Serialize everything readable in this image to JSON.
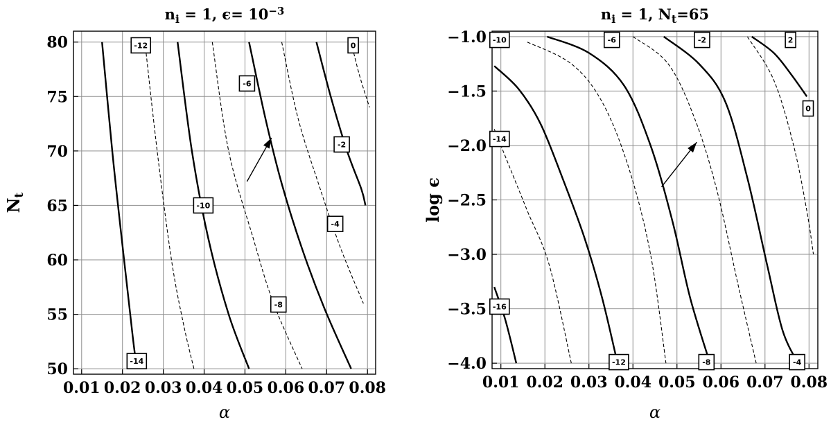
{
  "chart_data": [
    {
      "type": "line",
      "subtype": "contour",
      "title": "n_i = 1, ε = 10^-3",
      "title_parts": {
        "pre": "n",
        "sub": "i",
        "mid": " = 1, ϵ= 10",
        "sup": "−3"
      },
      "xlabel": "α",
      "ylabel": "N_t",
      "ylabel_parts": {
        "base": "N",
        "sub": "t"
      },
      "xlim": [
        0.008,
        0.082
      ],
      "ylim": [
        49.5,
        81
      ],
      "xticks": [
        0.01,
        0.02,
        0.03,
        0.04,
        0.05,
        0.06,
        0.07,
        0.08
      ],
      "xtick_labels": [
        "0.01",
        "0.02",
        "0.03",
        "0.04",
        "0.05",
        "0.06",
        "0.07",
        "0.08"
      ],
      "yticks": [
        50,
        55,
        60,
        65,
        70,
        75,
        80
      ],
      "ytick_labels": [
        "50",
        "55",
        "60",
        "65",
        "70",
        "75",
        "80"
      ],
      "grid": true,
      "series": [
        {
          "name": "-14",
          "style": "solid",
          "points": [
            [
              0.015,
              80
            ],
            [
              0.0175,
              70
            ],
            [
              0.0195,
              63
            ],
            [
              0.021,
              58
            ],
            [
              0.0225,
              53
            ],
            [
              0.0235,
              50
            ]
          ]
        },
        {
          "name": "-12",
          "style": "dashed",
          "points": [
            [
              0.0255,
              80
            ],
            [
              0.0285,
              70
            ],
            [
              0.032,
              60
            ],
            [
              0.035,
              54
            ],
            [
              0.0375,
              50
            ]
          ]
        },
        {
          "name": "-10",
          "style": "solid",
          "points": [
            [
              0.0335,
              80
            ],
            [
              0.037,
              70
            ],
            [
              0.041,
              62
            ],
            [
              0.046,
              55
            ],
            [
              0.051,
              50
            ]
          ]
        },
        {
          "name": "-8",
          "style": "dashed",
          "points": [
            [
              0.042,
              80
            ],
            [
              0.046,
              70
            ],
            [
              0.052,
              62
            ],
            [
              0.057,
              56
            ],
            [
              0.064,
              50
            ]
          ]
        },
        {
          "name": "-6",
          "style": "solid",
          "points": [
            [
              0.051,
              80
            ],
            [
              0.055,
              73
            ],
            [
              0.059,
              67
            ],
            [
              0.064,
              61
            ],
            [
              0.0695,
              55.5
            ],
            [
              0.076,
              50
            ]
          ]
        },
        {
          "name": "-4",
          "style": "dashed",
          "points": [
            [
              0.059,
              80
            ],
            [
              0.063,
              73
            ],
            [
              0.068,
              67
            ],
            [
              0.0735,
              61
            ],
            [
              0.079,
              56
            ]
          ]
        },
        {
          "name": "-2",
          "style": "solid",
          "points": [
            [
              0.0675,
              80
            ],
            [
              0.071,
              75
            ],
            [
              0.075,
              70
            ],
            [
              0.0785,
              66.5
            ],
            [
              0.0795,
              65
            ]
          ]
        },
        {
          "name": "0",
          "style": "dashed",
          "points": [
            [
              0.076,
              80
            ],
            [
              0.078,
              77
            ],
            [
              0.0805,
              74
            ]
          ]
        }
      ],
      "contour_labels": [
        "-12",
        "0",
        "-6",
        "-2",
        "-10",
        "-4",
        "-8",
        "-14"
      ],
      "arrow": {
        "from": [
          0.0505,
          67.2
        ],
        "to": [
          0.0565,
          71.2
        ]
      }
    },
    {
      "type": "line",
      "subtype": "contour",
      "title": "n_i = 1, N_t = 65",
      "title_parts": {
        "pre": "n",
        "sub": "i",
        "mid": " = 1, N",
        "sub2": "t",
        "post": "=65"
      },
      "xlabel": "α",
      "ylabel": "log ϵ",
      "xlim": [
        0.008,
        0.082
      ],
      "ylim": [
        -4.05,
        -0.95
      ],
      "xticks": [
        0.01,
        0.02,
        0.03,
        0.04,
        0.05,
        0.06,
        0.07,
        0.08
      ],
      "xtick_labels": [
        "0.01",
        "0.02",
        "0.03",
        "0.04",
        "0.05",
        "0.06",
        "0.07",
        "0.08"
      ],
      "yticks": [
        -4.0,
        -3.5,
        -3.0,
        -2.5,
        -2.0,
        -1.5,
        -1.0
      ],
      "ytick_labels": [
        "−4.0",
        "−3.5",
        "−3.0",
        "−2.5",
        "−2.0",
        "−1.5",
        "−1.0"
      ],
      "grid": true,
      "series": [
        {
          "name": "-16",
          "style": "solid",
          "points": [
            [
              0.0085,
              -3.3
            ],
            [
              0.011,
              -3.6
            ],
            [
              0.0135,
              -4.0
            ]
          ]
        },
        {
          "name": "-14",
          "style": "dashed",
          "points": [
            [
              0.0085,
              -1.85
            ],
            [
              0.012,
              -2.2
            ],
            [
              0.016,
              -2.6
            ],
            [
              0.021,
              -3.1
            ],
            [
              0.026,
              -4.0
            ]
          ]
        },
        {
          "name": "-12",
          "style": "solid",
          "points": [
            [
              0.0085,
              -1.27
            ],
            [
              0.014,
              -1.48
            ],
            [
              0.019,
              -1.8
            ],
            [
              0.024,
              -2.3
            ],
            [
              0.029,
              -2.85
            ],
            [
              0.033,
              -3.4
            ],
            [
              0.0365,
              -4.0
            ]
          ]
        },
        {
          "name": "-10",
          "style": "dashed",
          "points": [
            [
              0.016,
              -1.05
            ],
            [
              0.026,
              -1.25
            ],
            [
              0.033,
              -1.6
            ],
            [
              0.039,
              -2.2
            ],
            [
              0.044,
              -3.0
            ],
            [
              0.0475,
              -4.0
            ]
          ]
        },
        {
          "name": "-8",
          "style": "solid",
          "points": [
            [
              0.0205,
              -1.0
            ],
            [
              0.03,
              -1.15
            ],
            [
              0.038,
              -1.45
            ],
            [
              0.044,
              -2.0
            ],
            [
              0.049,
              -2.7
            ],
            [
              0.053,
              -3.4
            ],
            [
              0.0575,
              -4.0
            ]
          ]
        },
        {
          "name": "-6",
          "style": "dashed",
          "points": [
            [
              0.04,
              -1.0
            ],
            [
              0.048,
              -1.25
            ],
            [
              0.054,
              -1.75
            ],
            [
              0.059,
              -2.4
            ],
            [
              0.064,
              -3.3
            ],
            [
              0.068,
              -4.0
            ]
          ]
        },
        {
          "name": "-4",
          "style": "solid",
          "points": [
            [
              0.047,
              -1.0
            ],
            [
              0.055,
              -1.25
            ],
            [
              0.061,
              -1.6
            ],
            [
              0.066,
              -2.3
            ],
            [
              0.0705,
              -3.1
            ],
            [
              0.074,
              -3.7
            ],
            [
              0.0775,
              -4.0
            ]
          ]
        },
        {
          "name": "-2",
          "style": "dashed",
          "points": [
            [
              0.066,
              -1.0
            ],
            [
              0.072,
              -1.4
            ],
            [
              0.0765,
              -2.0
            ],
            [
              0.0795,
              -2.6
            ],
            [
              0.081,
              -3.0
            ]
          ]
        },
        {
          "name": "0",
          "style": "solid",
          "points": [
            [
              0.067,
              -1.0
            ],
            [
              0.072,
              -1.15
            ],
            [
              0.076,
              -1.35
            ],
            [
              0.0795,
              -1.55
            ]
          ]
        }
      ],
      "contour_labels": [
        "-10",
        "-6",
        "-2",
        "2",
        "0",
        "-14",
        "-16",
        "-12",
        "-8",
        "-4"
      ],
      "arrow": {
        "from": [
          0.0465,
          -2.38
        ],
        "to": [
          0.0545,
          -1.97
        ]
      }
    }
  ]
}
